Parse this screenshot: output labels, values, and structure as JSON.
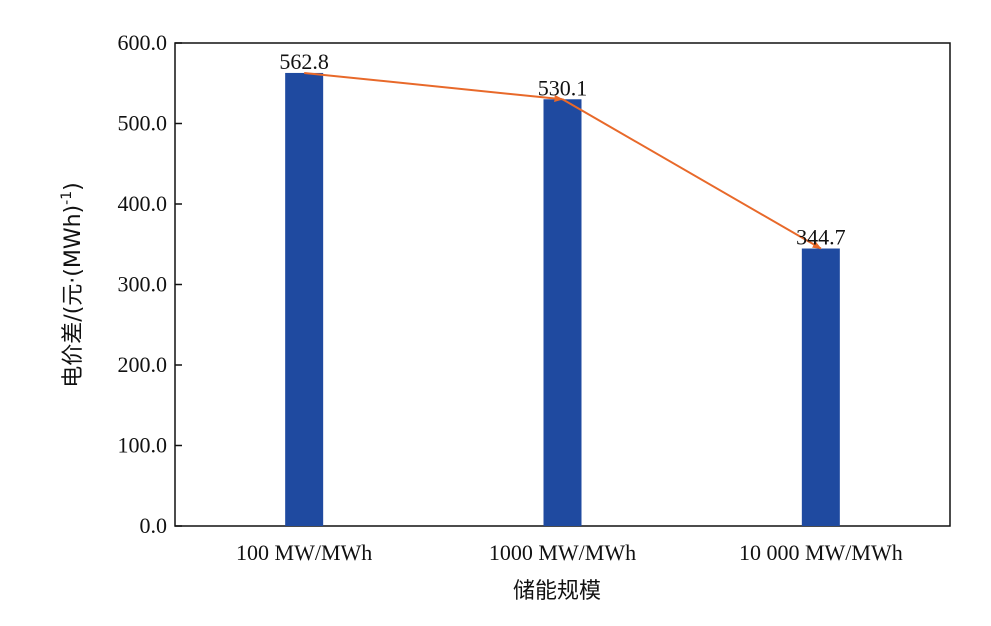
{
  "chart_data": {
    "type": "bar",
    "title": "",
    "xlabel": "储能规模",
    "ylabel": "电价差/(元·(MWh)",
    "ylabel_superscript": "-1",
    "ylabel_close": ")",
    "categories": [
      "100 MW/MWh",
      "1000 MW/MWh",
      "10 000 MW/MWh"
    ],
    "values": [
      562.8,
      530.1,
      344.7
    ],
    "data_labels": [
      "562.8",
      "530.1",
      "344.7"
    ],
    "ylim": [
      0,
      600
    ],
    "y_ticks": [
      0,
      100,
      200,
      300,
      400,
      500,
      600
    ],
    "y_tick_labels": [
      "0.0",
      "100.0",
      "200.0",
      "300.0",
      "400.0",
      "500.0",
      "600.0"
    ],
    "grid": false,
    "legend": "none",
    "trend_arrows": true,
    "colors": {
      "bar": "#1f4aa0",
      "arrow": "#e8692a",
      "axis": "#111111"
    }
  }
}
